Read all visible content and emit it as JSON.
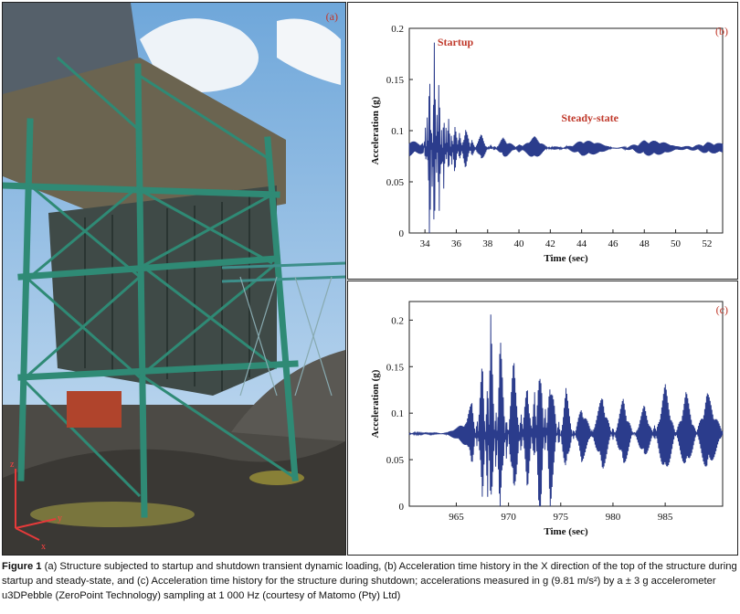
{
  "panels": {
    "a": {
      "label": "(a)"
    },
    "b": {
      "label": "(b)"
    },
    "c": {
      "label": "(c)"
    }
  },
  "photo": {
    "axis_labels": [
      "z",
      "y",
      "x"
    ]
  },
  "colors": {
    "series": "#2b3c8c",
    "label": "#c0392b",
    "sky": "#7fb0dc",
    "steel": "#2f7f6c"
  },
  "caption": {
    "figure_label": "Figure 1",
    "text": "(a) Structure subjected to startup and shutdown transient dynamic loading, (b) Acceleration time history in the X direction of the top of the structure during startup and steady-state, and (c) Acceleration time history for the structure during shutdown; accelerations measured in g (9.81 m/s²) by a ± 3 g accelerometer u3DPebble (ZeroPoint Technology) sampling at 1 000 Hz (courtesy of Matomo (Pty) Ltd)"
  },
  "chart_data": [
    {
      "type": "line",
      "xlabel": "Time (sec)",
      "ylabel": "Acceleration (g)",
      "xlim": [
        33,
        53
      ],
      "ylim": [
        0,
        0.2
      ],
      "xticks": [
        34,
        36,
        38,
        40,
        42,
        44,
        46,
        48,
        50,
        52
      ],
      "yticks": [
        0,
        0.05,
        0.1,
        0.15,
        0.2
      ],
      "annotations": [
        {
          "text": "Startup",
          "x": 34.8,
          "y": 0.183
        },
        {
          "text": "Steady-state",
          "x": 42.7,
          "y": 0.109
        }
      ],
      "series": [
        {
          "points": [
            [
              33.0,
              0.075
            ],
            [
              33.5,
              0.076
            ],
            [
              33.9,
              0.075
            ],
            [
              34.05,
              0.11
            ],
            [
              34.15,
              0.045
            ],
            [
              34.3,
              0.19
            ],
            [
              34.45,
              0.035
            ],
            [
              34.6,
              0.197
            ],
            [
              34.75,
              0.03
            ],
            [
              34.9,
              0.165
            ],
            [
              35.05,
              0.05
            ],
            [
              35.2,
              0.125
            ],
            [
              35.35,
              0.06
            ],
            [
              35.5,
              0.115
            ],
            [
              35.7,
              0.065
            ],
            [
              35.9,
              0.108
            ],
            [
              36.2,
              0.07
            ],
            [
              36.6,
              0.103
            ],
            [
              37.0,
              0.075
            ],
            [
              37.6,
              0.098
            ],
            [
              38.2,
              0.078
            ],
            [
              39.0,
              0.095
            ],
            [
              40.0,
              0.08
            ],
            [
              41.0,
              0.093
            ],
            [
              42.0,
              0.082
            ],
            [
              44.0,
              0.09
            ],
            [
              46.0,
              0.083
            ],
            [
              48.0,
              0.091
            ],
            [
              50.0,
              0.084
            ],
            [
              52.0,
              0.09
            ],
            [
              53.0,
              0.086
            ]
          ]
        }
      ]
    },
    {
      "type": "line",
      "xlabel": "Time (sec)",
      "ylabel": "Acceleration (g)",
      "xlim": [
        960.5,
        990.5
      ],
      "ylim": [
        0,
        0.22
      ],
      "xticks": [
        965,
        970,
        975,
        980,
        985
      ],
      "yticks": [
        0,
        0.05,
        0.1,
        0.15,
        0.2
      ],
      "series": [
        {
          "points": [
            [
              960.5,
              0.077
            ],
            [
              962.0,
              0.08
            ],
            [
              964.0,
              0.078
            ],
            [
              965.0,
              0.082
            ],
            [
              966.0,
              0.09
            ],
            [
              966.5,
              0.115
            ],
            [
              967.0,
              0.06
            ],
            [
              967.5,
              0.165
            ],
            [
              968.0,
              0.002
            ],
            [
              968.3,
              0.208
            ],
            [
              968.8,
              0.03
            ],
            [
              969.2,
              0.19
            ],
            [
              969.8,
              0.05
            ],
            [
              970.5,
              0.16
            ],
            [
              971.2,
              0.055
            ],
            [
              971.8,
              0.14
            ],
            [
              972.5,
              0.035
            ],
            [
              973.0,
              0.185
            ],
            [
              973.5,
              0.045
            ],
            [
              974.0,
              0.16
            ],
            [
              974.8,
              0.06
            ],
            [
              975.5,
              0.13
            ],
            [
              976.2,
              0.07
            ],
            [
              977.0,
              0.11
            ],
            [
              978.0,
              0.075
            ],
            [
              979.0,
              0.12
            ],
            [
              980.0,
              0.07
            ],
            [
              981.0,
              0.12
            ],
            [
              982.0,
              0.075
            ],
            [
              983.0,
              0.11
            ],
            [
              984.0,
              0.07
            ],
            [
              985.0,
              0.13
            ],
            [
              986.0,
              0.075
            ],
            [
              987.0,
              0.125
            ],
            [
              988.0,
              0.08
            ],
            [
              989.0,
              0.125
            ],
            [
              990.5,
              0.077
            ]
          ]
        }
      ]
    }
  ]
}
